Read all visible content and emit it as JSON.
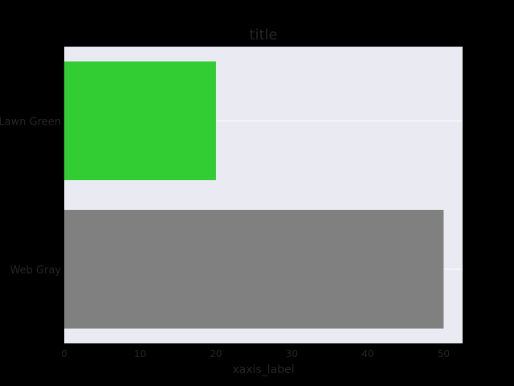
{
  "chart_data": {
    "type": "bar",
    "orientation": "horizontal",
    "title": "title",
    "xlabel": "xaxis_label",
    "ylabel": "",
    "categories": [
      "Lawn Green",
      "Web Gray"
    ],
    "values": [
      20,
      50
    ],
    "bar_colors": [
      "#32CD32",
      "#808080"
    ],
    "xlim": [
      0,
      52.5
    ],
    "xticks": [
      0,
      10,
      20,
      30,
      40,
      50
    ],
    "grid": true,
    "legend": "none"
  },
  "colors": {
    "figure_background": "#000000",
    "plot_background": "#EAEAF2",
    "grid": "#FFFFFF",
    "text": "#262626"
  }
}
